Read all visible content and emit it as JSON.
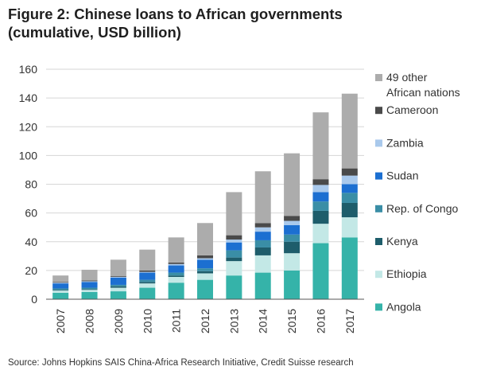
{
  "title_line1": "Figure 2: Chinese loans to African governments",
  "title_line2": "(cumulative, USD billion)",
  "source": "Source: Johns Hopkins SAIS China-Africa Research Initiative, Credit Suisse research",
  "chart_data": {
    "type": "bar",
    "stacked": true,
    "title": "Figure 2: Chinese loans to African governments (cumulative, USD billion)",
    "xlabel": "",
    "ylabel": "",
    "ylim": [
      0,
      160
    ],
    "yticks": [
      0,
      20,
      40,
      60,
      80,
      100,
      120,
      140,
      160
    ],
    "grid": "horizontal",
    "legend_position": "right",
    "categories": [
      "2007",
      "2008",
      "2009",
      "2010",
      "2011",
      "2012",
      "2013",
      "2014",
      "2015",
      "2016",
      "2017"
    ],
    "series": [
      {
        "name": "Angola",
        "color": "#35b3a9",
        "values": [
          4.5,
          5,
          5.5,
          8,
          11.5,
          13.5,
          16.5,
          18.5,
          20,
          39,
          43
        ]
      },
      {
        "name": "Ethiopia",
        "color": "#c3e8e6",
        "values": [
          1.5,
          1.5,
          2.5,
          3,
          4,
          4.5,
          10,
          12,
          12,
          13.5,
          14
        ]
      },
      {
        "name": "Kenya",
        "color": "#1e5d6b",
        "values": [
          0.5,
          0.5,
          1,
          1,
          1,
          1.5,
          2.5,
          5.5,
          8,
          9,
          10
        ]
      },
      {
        "name": "Rep. of Congo",
        "color": "#3a8ea6",
        "values": [
          1,
          1,
          1,
          1.5,
          2,
          2,
          5,
          5,
          5,
          6.5,
          7
        ]
      },
      {
        "name": "Sudan",
        "color": "#1c6fd1",
        "values": [
          3.5,
          4,
          5,
          5,
          5,
          6,
          5.5,
          6,
          6.5,
          6.5,
          6
        ]
      },
      {
        "name": "Zambia",
        "color": "#a9c9ec",
        "values": [
          0.5,
          0.5,
          0.5,
          0.5,
          1,
          1,
          2,
          3,
          3,
          5,
          6
        ]
      },
      {
        "name": "Cameroon",
        "color": "#4a4a4a",
        "values": [
          0.5,
          0.5,
          0.5,
          1,
          1,
          2,
          3,
          3,
          3.5,
          4,
          5
        ]
      },
      {
        "name": "49 other African nations",
        "color": "#acacac",
        "values": [
          4.5,
          7.5,
          11.5,
          14.5,
          17.5,
          22.5,
          30,
          36,
          43.5,
          46.5,
          52
        ]
      }
    ],
    "legend_lines": [
      [
        "49 other",
        "African nations"
      ],
      [
        "Cameroon"
      ],
      [
        "Zambia"
      ],
      [
        "Sudan"
      ],
      [
        "Rep. of Congo"
      ],
      [
        "Kenya"
      ],
      [
        "Ethiopia"
      ],
      [
        "Angola"
      ]
    ]
  }
}
